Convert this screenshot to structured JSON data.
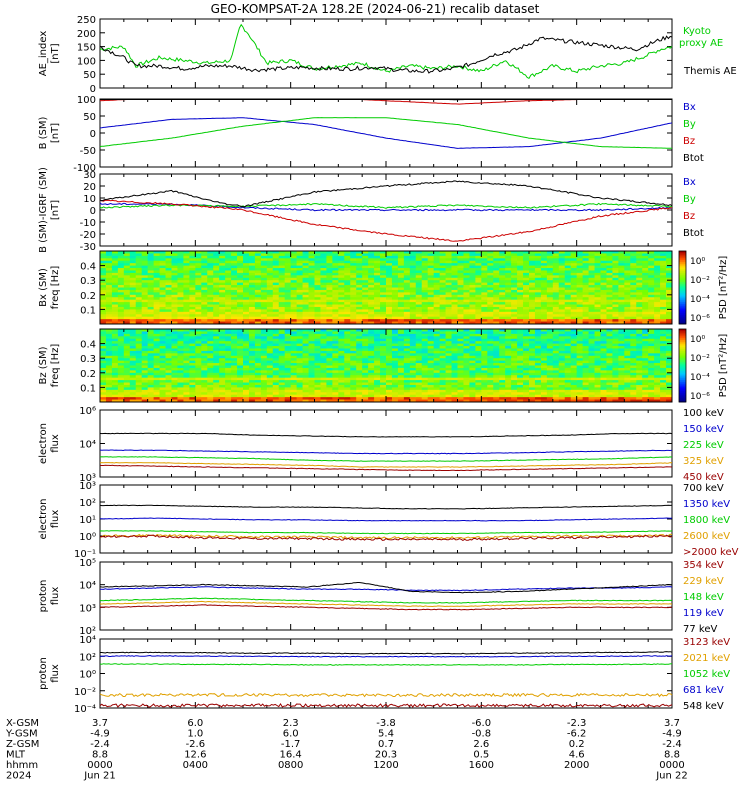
{
  "title": "GEO-KOMPSAT-2A 128.2E (2024-06-21) recalib dataset",
  "chart_data": [
    {
      "type": "line",
      "ylabel": [
        "AE_index",
        "[nT]"
      ],
      "ylim": [
        0,
        250
      ],
      "yticks": [
        "250",
        "200",
        "150",
        "100",
        "50",
        "0"
      ],
      "series": [
        {
          "name": "Kyoto proxy AE",
          "label": [
            "Kyoto",
            "proxy AE"
          ],
          "color": "#00cc00",
          "x": [
            0,
            1.0,
            1.5,
            2.5,
            3.5,
            4.5,
            5.5,
            5.9,
            6.2,
            7.0,
            8.0,
            9.0,
            10,
            11,
            12,
            13,
            14,
            15,
            16,
            17,
            18,
            19,
            20,
            21,
            22,
            23,
            23.5,
            24
          ],
          "values": [
            140,
            150,
            80,
            110,
            100,
            90,
            100,
            230,
            200,
            90,
            100,
            70,
            80,
            90,
            60,
            80,
            70,
            80,
            60,
            100,
            40,
            80,
            60,
            80,
            90,
            120,
            140,
            150
          ]
        },
        {
          "name": "Themis AE",
          "label": [
            "Themis AE"
          ],
          "color": "#000000",
          "x": [
            0,
            1.0,
            1.5,
            2.5,
            3.5,
            4.5,
            5.5,
            6.5,
            7.5,
            8.5,
            9.5,
            10.5,
            11.5,
            12.5,
            13.5,
            14.5,
            15.5,
            16.5,
            17.5,
            18.5,
            19.5,
            20.5,
            21.5,
            22.5,
            23.5,
            24
          ],
          "values": [
            150,
            110,
            80,
            80,
            70,
            80,
            80,
            65,
            70,
            75,
            70,
            70,
            75,
            65,
            60,
            65,
            85,
            120,
            140,
            180,
            170,
            160,
            150,
            140,
            175,
            190
          ]
        }
      ]
    },
    {
      "type": "line",
      "ylabel": [
        "B (SM)",
        "[nT]"
      ],
      "ylim": [
        -100,
        100
      ],
      "yticks": [
        "100",
        "50",
        "0",
        "-50",
        "-100"
      ],
      "series": [
        {
          "name": "Bx",
          "color": "#0000cc",
          "x": [
            0,
            3,
            6,
            9,
            12,
            15,
            18,
            21,
            24
          ],
          "values": [
            15,
            40,
            45,
            25,
            -15,
            -45,
            -40,
            -15,
            30
          ]
        },
        {
          "name": "By",
          "color": "#00cc00",
          "x": [
            0,
            3,
            6,
            9,
            12,
            15,
            18,
            21,
            24
          ],
          "values": [
            -40,
            -15,
            20,
            45,
            45,
            25,
            -15,
            -40,
            -45
          ]
        },
        {
          "name": "Bz",
          "color": "#cc0000",
          "x": [
            0,
            3,
            6,
            9,
            12,
            15,
            18,
            21,
            24
          ],
          "values": [
            95,
            105,
            110,
            105,
            95,
            85,
            95,
            100,
            105
          ]
        },
        {
          "name": "Btot",
          "color": "#000000",
          "x": [
            0,
            3,
            6,
            9,
            12,
            15,
            18,
            21,
            24
          ],
          "values": [
            105,
            112,
            118,
            113,
            103,
            98,
            105,
            110,
            115
          ]
        }
      ]
    },
    {
      "type": "line",
      "ylabel": [
        "B (SM)-IGRF (SM)",
        "[nT]"
      ],
      "ylim": [
        -30,
        30
      ],
      "yticks": [
        "30",
        "20",
        "10",
        "0",
        "-10",
        "-20",
        "-30"
      ],
      "series": [
        {
          "name": "Bx",
          "color": "#0000cc",
          "x": [
            0,
            3,
            6,
            9,
            12,
            15,
            18,
            21,
            24
          ],
          "values": [
            5,
            5,
            2,
            0,
            0,
            0,
            0,
            0,
            2
          ]
        },
        {
          "name": "By",
          "color": "#00cc00",
          "x": [
            0,
            3,
            6,
            9,
            12,
            15,
            18,
            21,
            24
          ],
          "values": [
            2,
            4,
            3,
            5,
            2,
            4,
            2,
            5,
            3
          ]
        },
        {
          "name": "Bz",
          "color": "#cc0000",
          "x": [
            0,
            3,
            5,
            6,
            9,
            12,
            15,
            18,
            21,
            24
          ],
          "values": [
            8,
            5,
            2,
            0,
            -12,
            -20,
            -26,
            -18,
            -5,
            2
          ]
        },
        {
          "name": "Btot",
          "color": "#000000",
          "x": [
            0,
            3,
            5,
            6,
            9,
            12,
            15,
            18,
            21,
            24
          ],
          "values": [
            8,
            16,
            6,
            3,
            15,
            20,
            24,
            20,
            10,
            4
          ]
        }
      ]
    },
    {
      "type": "heatmap",
      "ylabel": [
        "Bx (SM)",
        "freq [Hz]"
      ],
      "yticks": [
        "0.4",
        "0.3",
        "0.2",
        "0.1"
      ],
      "ylim": [
        0,
        0.5
      ],
      "colorbar": {
        "label": "PSD [nT²/Hz]",
        "ticks": [
          "10⁰",
          "10⁻²",
          "10⁻⁴",
          "10⁻⁶"
        ]
      }
    },
    {
      "type": "heatmap",
      "ylabel": [
        "Bz (SM)",
        "freq [Hz]"
      ],
      "yticks": [
        "0.4",
        "0.3",
        "0.2",
        "0.1"
      ],
      "ylim": [
        0,
        0.5
      ],
      "colorbar": {
        "label": "PSD [nT²/Hz]",
        "ticks": [
          "10⁰",
          "10⁻²",
          "10⁻⁴",
          "10⁻⁶"
        ]
      }
    },
    {
      "type": "line",
      "ylabel": [
        "electron",
        "flux"
      ],
      "yscale": "log",
      "ylim": [
        2,
        6
      ],
      "yticks": [
        "10⁶",
        "10⁴",
        "10³"
      ],
      "series": [
        {
          "name": "100 keV",
          "color": "#000000",
          "values": [
            4.6,
            4.6,
            4.6,
            4.5,
            4.45,
            4.4,
            4.4,
            4.4,
            4.45,
            4.5,
            4.6,
            4.6
          ]
        },
        {
          "name": "150 keV",
          "color": "#0000cc",
          "values": [
            3.6,
            3.6,
            3.55,
            3.5,
            3.45,
            3.4,
            3.4,
            3.4,
            3.45,
            3.5,
            3.55,
            3.6
          ]
        },
        {
          "name": "225 keV",
          "color": "#00cc00",
          "values": [
            3.2,
            3.2,
            3.15,
            3.1,
            3.0,
            2.95,
            2.95,
            2.95,
            3.0,
            3.05,
            3.1,
            3.2
          ]
        },
        {
          "name": "325 keV",
          "color": "#e0a000",
          "values": [
            2.85,
            2.85,
            2.8,
            2.75,
            2.7,
            2.6,
            2.6,
            2.6,
            2.65,
            2.7,
            2.75,
            2.85
          ]
        },
        {
          "name": "450 keV",
          "color": "#990000",
          "values": [
            2.7,
            2.65,
            2.6,
            2.55,
            2.5,
            2.45,
            2.4,
            2.4,
            2.45,
            2.5,
            2.55,
            2.6
          ]
        }
      ]
    },
    {
      "type": "line",
      "ylabel": [
        "electron",
        "flux"
      ],
      "yscale": "log",
      "ylim": [
        -1,
        3
      ],
      "yticks": [
        "10³",
        "10²",
        "10¹",
        "10⁰",
        "10⁻¹"
      ],
      "series": [
        {
          "name": "700 keV",
          "color": "#000000",
          "values": [
            1.8,
            1.8,
            1.75,
            1.7,
            1.7,
            1.65,
            1.6,
            1.6,
            1.65,
            1.7,
            1.75,
            1.8
          ]
        },
        {
          "name": "1350 keV",
          "color": "#0000cc",
          "values": [
            1.0,
            1.05,
            1.0,
            0.95,
            0.95,
            0.9,
            0.9,
            0.9,
            0.9,
            0.95,
            1.0,
            1.05
          ]
        },
        {
          "name": "1800 keV",
          "color": "#00cc00",
          "values": [
            0.3,
            0.3,
            0.25,
            0.2,
            0.2,
            0.15,
            0.15,
            0.15,
            0.2,
            0.2,
            0.25,
            0.3
          ]
        },
        {
          "name": "2600 keV",
          "color": "#e0a000",
          "values": [
            0.0,
            0.05,
            0.0,
            -0.05,
            -0.05,
            -0.1,
            -0.1,
            -0.1,
            -0.05,
            0.0,
            0.0,
            0.05
          ]
        },
        {
          "name": ">2000 keV",
          "color": "#990000",
          "values": [
            -0.05,
            0.0,
            -0.1,
            -0.15,
            -0.15,
            -0.2,
            -0.2,
            -0.2,
            -0.15,
            -0.1,
            -0.05,
            0.0
          ]
        }
      ]
    },
    {
      "type": "line",
      "ylabel": [
        "proton",
        "flux"
      ],
      "yscale": "log",
      "ylim": [
        2,
        5
      ],
      "yticks": [
        "10⁵",
        "10⁴",
        "10³",
        "10²"
      ],
      "series": [
        {
          "name": "354 keV",
          "color": "#990000",
          "values": [
            3.0,
            3.05,
            3.1,
            3.05,
            3.0,
            2.95,
            2.9,
            2.9,
            2.95,
            3.0,
            3.0,
            3.0
          ]
        },
        {
          "name": "229 keV",
          "color": "#e0a000",
          "values": [
            3.15,
            3.2,
            3.25,
            3.2,
            3.15,
            3.1,
            3.05,
            3.05,
            3.1,
            3.15,
            3.15,
            3.15
          ]
        },
        {
          "name": "148 keV",
          "color": "#00cc00",
          "values": [
            3.3,
            3.35,
            3.4,
            3.35,
            3.3,
            3.25,
            3.2,
            3.2,
            3.25,
            3.3,
            3.3,
            3.3
          ]
        },
        {
          "name": "119 keV",
          "color": "#0000cc",
          "values": [
            3.8,
            3.85,
            3.9,
            3.85,
            3.8,
            3.8,
            3.75,
            3.75,
            3.8,
            3.85,
            3.85,
            3.9
          ]
        },
        {
          "name": "77 keV",
          "color": "#000000",
          "values": [
            3.9,
            3.95,
            4.0,
            3.95,
            3.9,
            4.1,
            3.7,
            3.65,
            3.7,
            3.8,
            3.9,
            4.0
          ]
        }
      ]
    },
    {
      "type": "line",
      "ylabel": [
        "proton",
        "flux"
      ],
      "yscale": "log",
      "ylim": [
        -4,
        4
      ],
      "yticks": [
        "10⁴",
        "10²",
        "10⁰",
        "10⁻²",
        "10⁻⁴"
      ],
      "series": [
        {
          "name": "3123 keV",
          "color": "#990000",
          "values": [
            -3.7,
            -3.7,
            -3.7,
            -3.7,
            -3.7,
            -3.7,
            -3.7,
            -3.7,
            -3.7,
            -3.7,
            -3.7,
            -3.7
          ]
        },
        {
          "name": "2021 keV",
          "color": "#e0a000",
          "values": [
            -2.5,
            -2.5,
            -2.5,
            -2.5,
            -2.5,
            -2.5,
            -2.5,
            -2.5,
            -2.5,
            -2.5,
            -2.5,
            -2.5
          ]
        },
        {
          "name": "1052 keV",
          "color": "#00cc00",
          "values": [
            1.1,
            1.1,
            1.05,
            1.05,
            1.0,
            1.0,
            1.0,
            1.0,
            1.0,
            1.05,
            1.05,
            1.1
          ]
        },
        {
          "name": "681 keV",
          "color": "#0000cc",
          "values": [
            2.0,
            2.05,
            2.0,
            2.0,
            1.95,
            1.95,
            1.95,
            1.95,
            1.95,
            2.0,
            2.0,
            2.05
          ]
        },
        {
          "name": "548 keV",
          "color": "#000000",
          "values": [
            2.4,
            2.45,
            2.4,
            2.35,
            2.35,
            2.3,
            2.3,
            2.3,
            2.35,
            2.4,
            2.45,
            2.5
          ]
        }
      ]
    }
  ],
  "ephemeris": {
    "labels": [
      "X-GSM",
      "Y-GSM",
      "Z-GSM",
      "MLT",
      "hhmm",
      "2024"
    ],
    "columns": [
      [
        "3.7",
        "-4.9",
        "-2.4",
        "8.8",
        "0000",
        "Jun 21"
      ],
      [
        "6.0",
        "1.0",
        "-2.6",
        "12.6",
        "0400",
        ""
      ],
      [
        "2.3",
        "6.0",
        "-1.7",
        "16.4",
        "0800",
        ""
      ],
      [
        "-3.8",
        "5.4",
        "0.7",
        "20.3",
        "1200",
        ""
      ],
      [
        "-6.0",
        "-0.8",
        "2.6",
        "0.5",
        "1600",
        ""
      ],
      [
        "-2.3",
        "-6.2",
        "0.2",
        "4.6",
        "2000",
        ""
      ],
      [
        "3.7",
        "-4.9",
        "-2.4",
        "8.8",
        "0000",
        "Jun 22"
      ]
    ]
  }
}
